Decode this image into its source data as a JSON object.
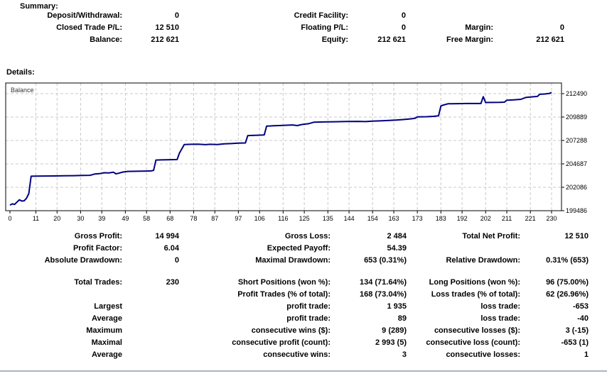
{
  "summary": {
    "title": "Summary:",
    "rows": [
      [
        {
          "label": "Deposit/Withdrawal:",
          "value": "0"
        },
        {
          "label": "Credit Facility:",
          "value": "0"
        },
        {
          "label": "",
          "value": ""
        }
      ],
      [
        {
          "label": "Closed Trade P/L:",
          "value": "12 510"
        },
        {
          "label": "Floating P/L:",
          "value": "0"
        },
        {
          "label": "Margin:",
          "value": "0"
        }
      ],
      [
        {
          "label": "Balance:",
          "value": "212 621"
        },
        {
          "label": "Equity:",
          "value": "212 621"
        },
        {
          "label": "Free Margin:",
          "value": "212 621"
        }
      ]
    ]
  },
  "details": {
    "title": "Details:",
    "rows": [
      {
        "cells": [
          {
            "label": "Gross Profit:",
            "value": "14 994"
          },
          {
            "label": "Gross Loss:",
            "value": "2 484"
          },
          {
            "label": "Total Net Profit:",
            "value": "12 510"
          }
        ]
      },
      {
        "cells": [
          {
            "label": "Profit Factor:",
            "value": "6.04"
          },
          {
            "label": "Expected Payoff:",
            "value": "54.39"
          },
          {
            "label": "",
            "value": ""
          }
        ]
      },
      {
        "cells": [
          {
            "label": "Absolute Drawdown:",
            "value": "0"
          },
          {
            "label": "Maximal Drawdown:",
            "value": "653 (0.31%)"
          },
          {
            "label": "Relative Drawdown:",
            "value": "0.31% (653)"
          }
        ]
      },
      {
        "gap": true,
        "cells": [
          {
            "label": "Total Trades:",
            "value": "230"
          },
          {
            "label": "Short Positions (won %):",
            "value": "134 (71.64%)"
          },
          {
            "label": "Long Positions (won %):",
            "value": "96 (75.00%)"
          }
        ]
      },
      {
        "cells": [
          {
            "label": "",
            "value": ""
          },
          {
            "label": "Profit Trades (% of total):",
            "value": "168 (73.04%)"
          },
          {
            "label": "Loss trades (% of total):",
            "value": "62 (26.96%)"
          }
        ]
      },
      {
        "cells": [
          {
            "label": "Largest",
            "value": ""
          },
          {
            "label": "profit trade:",
            "value": "1 935"
          },
          {
            "label": "loss trade:",
            "value": "-653"
          }
        ]
      },
      {
        "cells": [
          {
            "label": "Average",
            "value": ""
          },
          {
            "label": "profit trade:",
            "value": "89"
          },
          {
            "label": "loss trade:",
            "value": "-40"
          }
        ]
      },
      {
        "cells": [
          {
            "label": "Maximum",
            "value": ""
          },
          {
            "label": "consecutive wins ($):",
            "value": "9 (289)"
          },
          {
            "label": "consecutive losses ($):",
            "value": "3 (-15)"
          }
        ]
      },
      {
        "cells": [
          {
            "label": "Maximal",
            "value": ""
          },
          {
            "label": "consecutive profit (count):",
            "value": "2 993 (5)"
          },
          {
            "label": "consecutive loss (count):",
            "value": "-653 (1)"
          }
        ]
      },
      {
        "cells": [
          {
            "label": "Average",
            "value": ""
          },
          {
            "label": "consecutive wins:",
            "value": "3"
          },
          {
            "label": "consecutive losses:",
            "value": "1"
          }
        ]
      }
    ]
  },
  "chart_data": {
    "type": "line",
    "title": "Balance",
    "legend_label": "Balance",
    "xlabel": "",
    "ylabel": "",
    "x_tick_labels": [
      0,
      11,
      20,
      30,
      39,
      49,
      58,
      68,
      78,
      87,
      97,
      106,
      116,
      125,
      135,
      144,
      154,
      163,
      173,
      183,
      192,
      202,
      211,
      221,
      230
    ],
    "y_tick_labels": [
      199486,
      202086,
      204687,
      207288,
      209889,
      212490
    ],
    "x_range": [
      0,
      230
    ],
    "y_axis_bottom": 199486,
    "y_axis_top": 213670,
    "grid": true,
    "legend_position": "top-left-inside",
    "colors": {
      "line": "#000080",
      "grid": "#c8c8c8",
      "frame": "#000000",
      "label": "#000000",
      "series_label": "#333333",
      "bottom_rule": "#aab4c4"
    },
    "points": [
      [
        0,
        200111
      ],
      [
        1,
        200240
      ],
      [
        2,
        200190
      ],
      [
        3,
        200450
      ],
      [
        4,
        200700
      ],
      [
        5,
        200560
      ],
      [
        6,
        200580
      ],
      [
        7,
        200860
      ],
      [
        8,
        201380
      ],
      [
        9,
        203315
      ],
      [
        11,
        203330
      ],
      [
        15,
        203340
      ],
      [
        19,
        203350
      ],
      [
        23,
        203360
      ],
      [
        27,
        203380
      ],
      [
        31,
        203400
      ],
      [
        34,
        203420
      ],
      [
        36,
        203560
      ],
      [
        38,
        203600
      ],
      [
        40,
        203700
      ],
      [
        42,
        203680
      ],
      [
        44,
        203760
      ],
      [
        45,
        203580
      ],
      [
        46,
        203640
      ],
      [
        48,
        203780
      ],
      [
        50,
        203850
      ],
      [
        54,
        203870
      ],
      [
        58,
        203890
      ],
      [
        60,
        203910
      ],
      [
        61,
        203960
      ],
      [
        62,
        205110
      ],
      [
        64,
        205130
      ],
      [
        68,
        205150
      ],
      [
        71,
        205170
      ],
      [
        72,
        205890
      ],
      [
        74,
        206830
      ],
      [
        77,
        206860
      ],
      [
        80,
        206880
      ],
      [
        83,
        206820
      ],
      [
        85,
        206860
      ],
      [
        88,
        206840
      ],
      [
        91,
        206910
      ],
      [
        94,
        206940
      ],
      [
        97,
        206990
      ],
      [
        100,
        207010
      ],
      [
        101,
        207830
      ],
      [
        104,
        207860
      ],
      [
        107,
        207890
      ],
      [
        108,
        207910
      ],
      [
        109,
        208880
      ],
      [
        112,
        208920
      ],
      [
        116,
        208960
      ],
      [
        120,
        209010
      ],
      [
        122,
        208940
      ],
      [
        124,
        209060
      ],
      [
        127,
        209160
      ],
      [
        129,
        209310
      ],
      [
        133,
        209340
      ],
      [
        138,
        209370
      ],
      [
        143,
        209390
      ],
      [
        148,
        209410
      ],
      [
        151,
        209380
      ],
      [
        154,
        209430
      ],
      [
        158,
        209470
      ],
      [
        161,
        209510
      ],
      [
        164,
        209560
      ],
      [
        167,
        209610
      ],
      [
        170,
        209680
      ],
      [
        172,
        209750
      ],
      [
        173,
        209900
      ],
      [
        177,
        209930
      ],
      [
        180,
        209970
      ],
      [
        182,
        210020
      ],
      [
        183,
        211120
      ],
      [
        184,
        211220
      ],
      [
        186,
        211360
      ],
      [
        190,
        211380
      ],
      [
        194,
        211390
      ],
      [
        198,
        211390
      ],
      [
        200,
        211390
      ],
      [
        201,
        212150
      ],
      [
        202,
        211500
      ],
      [
        205,
        211510
      ],
      [
        208,
        211520
      ],
      [
        210,
        211540
      ],
      [
        211,
        211760
      ],
      [
        214,
        211800
      ],
      [
        217,
        211860
      ],
      [
        219,
        212060
      ],
      [
        221,
        212110
      ],
      [
        224,
        212180
      ],
      [
        225,
        212420
      ],
      [
        227,
        212450
      ],
      [
        229,
        212500
      ],
      [
        230,
        212621
      ]
    ]
  }
}
